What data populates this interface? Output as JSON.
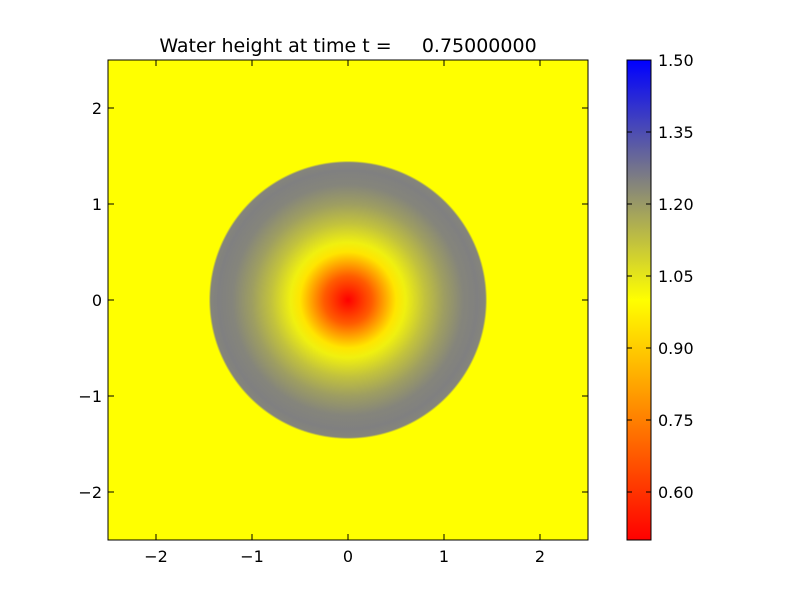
{
  "chart_data": {
    "type": "heatmap",
    "title": "Water height at time t =     0.75000000",
    "xlabel": "",
    "ylabel": "",
    "xlim": [
      -2.5,
      2.5
    ],
    "ylim": [
      -2.5,
      2.5
    ],
    "x_ticks": [
      -2,
      -1,
      0,
      1,
      2
    ],
    "y_ticks": [
      -2,
      -1,
      0,
      1,
      2
    ],
    "x_tick_labels": [
      "−2",
      "−1",
      "0",
      "1",
      "2"
    ],
    "y_tick_labels": [
      "−2",
      "−1",
      "0",
      "1",
      "2"
    ],
    "colorbar": {
      "range": [
        0.5,
        1.5
      ],
      "ticks": [
        0.6,
        0.75,
        0.9,
        1.05,
        1.2,
        1.35,
        1.5
      ],
      "tick_labels": [
        "0.60",
        "0.75",
        "0.90",
        "1.05",
        "1.20",
        "1.35",
        "1.50"
      ],
      "colormap": [
        {
          "value": 0.5,
          "color": "#ff0000"
        },
        {
          "value": 1.0,
          "color": "#ffff00"
        },
        {
          "value": 1.25,
          "color": "#808080"
        },
        {
          "value": 1.5,
          "color": "#0000ff"
        }
      ]
    },
    "grid": false,
    "field": {
      "description_radial_profile_r": [
        0.0,
        0.25,
        0.5,
        0.6,
        0.8,
        1.0,
        1.2,
        1.35,
        1.43,
        1.45,
        2.5
      ],
      "value_at_r": [
        0.5,
        0.68,
        0.95,
        1.03,
        1.12,
        1.19,
        1.24,
        1.25,
        1.24,
        1.0,
        1.0
      ],
      "background_value": 1.0
    }
  }
}
